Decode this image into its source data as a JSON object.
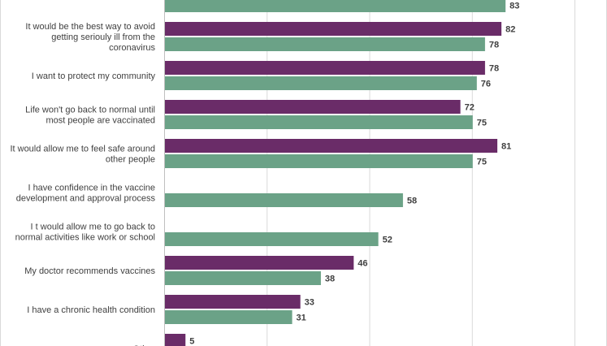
{
  "chart_data": {
    "type": "bar",
    "orientation": "horizontal",
    "title": "",
    "xlabel": "",
    "ylabel": "",
    "xlim": [
      0,
      100
    ],
    "grid": true,
    "legend": "none",
    "categories": [
      "",
      "It would be the best way to avoid\ngetting seriouly ill from the\ncoronavirus",
      "I want to protect my community",
      "Life won't go back to normal until\nmost people are vaccinated",
      "It would allow me to feel safe around\nother people",
      "I have confidence in the vaccine\ndevelopment and approval process",
      "I t would allow me to go back to\nnormal activities like work or school",
      "My doctor recommends vaccines",
      "I have a chronic health condition",
      "Other"
    ],
    "series": [
      {
        "color": "#6a2c68",
        "values": [
          null,
          82,
          78,
          72,
          81,
          null,
          null,
          46,
          33,
          5
        ]
      },
      {
        "color": "#6ba287",
        "values": [
          83,
          78,
          76,
          75,
          75,
          58,
          52,
          38,
          31,
          null
        ]
      }
    ]
  }
}
